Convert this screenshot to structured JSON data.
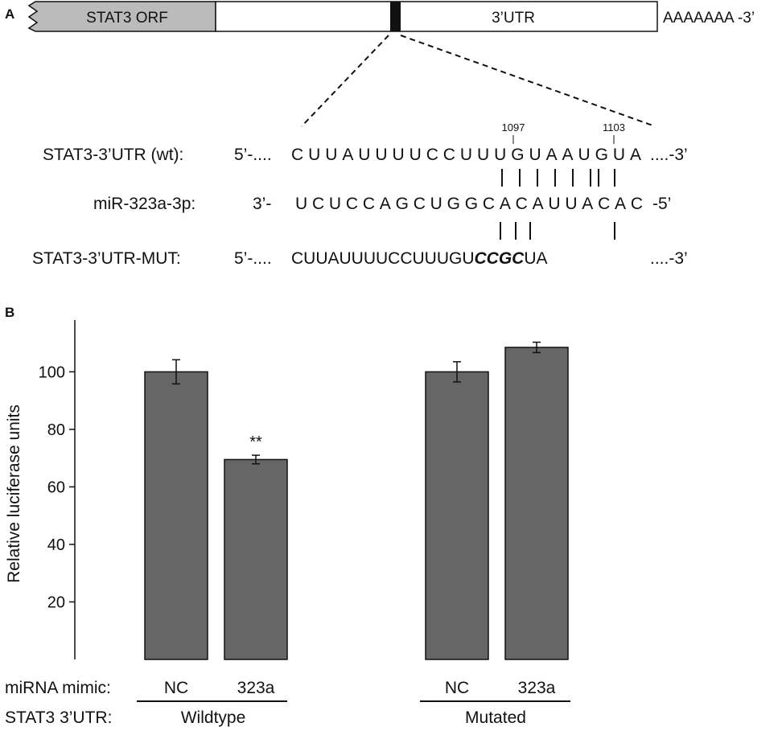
{
  "panel_a": {
    "label": "A",
    "orf_label": "STAT3 ORF",
    "utr_label": "3’UTR",
    "polya_label": "AAAAAAA -3’",
    "pos1": "1097",
    "pos2": "1103",
    "rows": [
      {
        "label": "STAT3-3’UTR (wt):",
        "prefix": "5’-....",
        "seq": "CUUAUUUUCCUUUGUAAUGUA",
        "suffix": "....-3’"
      },
      {
        "label": "miR-323a-3p:",
        "prefix": "3’-",
        "seq": "UCUCCAGCUGGCACAUUACAC",
        "suffix": "-5’"
      },
      {
        "label": "STAT3-3’UTR-MUT:",
        "prefix": "5’-....",
        "seq_before": "CUUAUUUUCCUUUGU",
        "seq_mut": "CCGC",
        "seq_after": "UA",
        "suffix": "....-3’"
      }
    ]
  },
  "panel_b": {
    "label": "B",
    "row1_label": "miRNA mimic:",
    "row2_label": "STAT3 3’UTR:",
    "groups": [
      "Wildtype",
      "Mutated"
    ]
  },
  "chart_data": {
    "type": "bar",
    "ylabel": "Relative luciferase units",
    "ylim": [
      0,
      118
    ],
    "yticks": [
      20,
      40,
      60,
      80,
      100
    ],
    "categories": [
      "NC",
      "323a",
      "NC",
      "323a"
    ],
    "groups": [
      "Wildtype",
      "Wildtype",
      "Mutated",
      "Mutated"
    ],
    "values": [
      100,
      69.5,
      100,
      108.5
    ],
    "errors": [
      4.2,
      1.5,
      3.5,
      1.8
    ],
    "annotations": [
      "",
      "**",
      "",
      ""
    ],
    "bar_color": "#666666",
    "grid": false
  }
}
